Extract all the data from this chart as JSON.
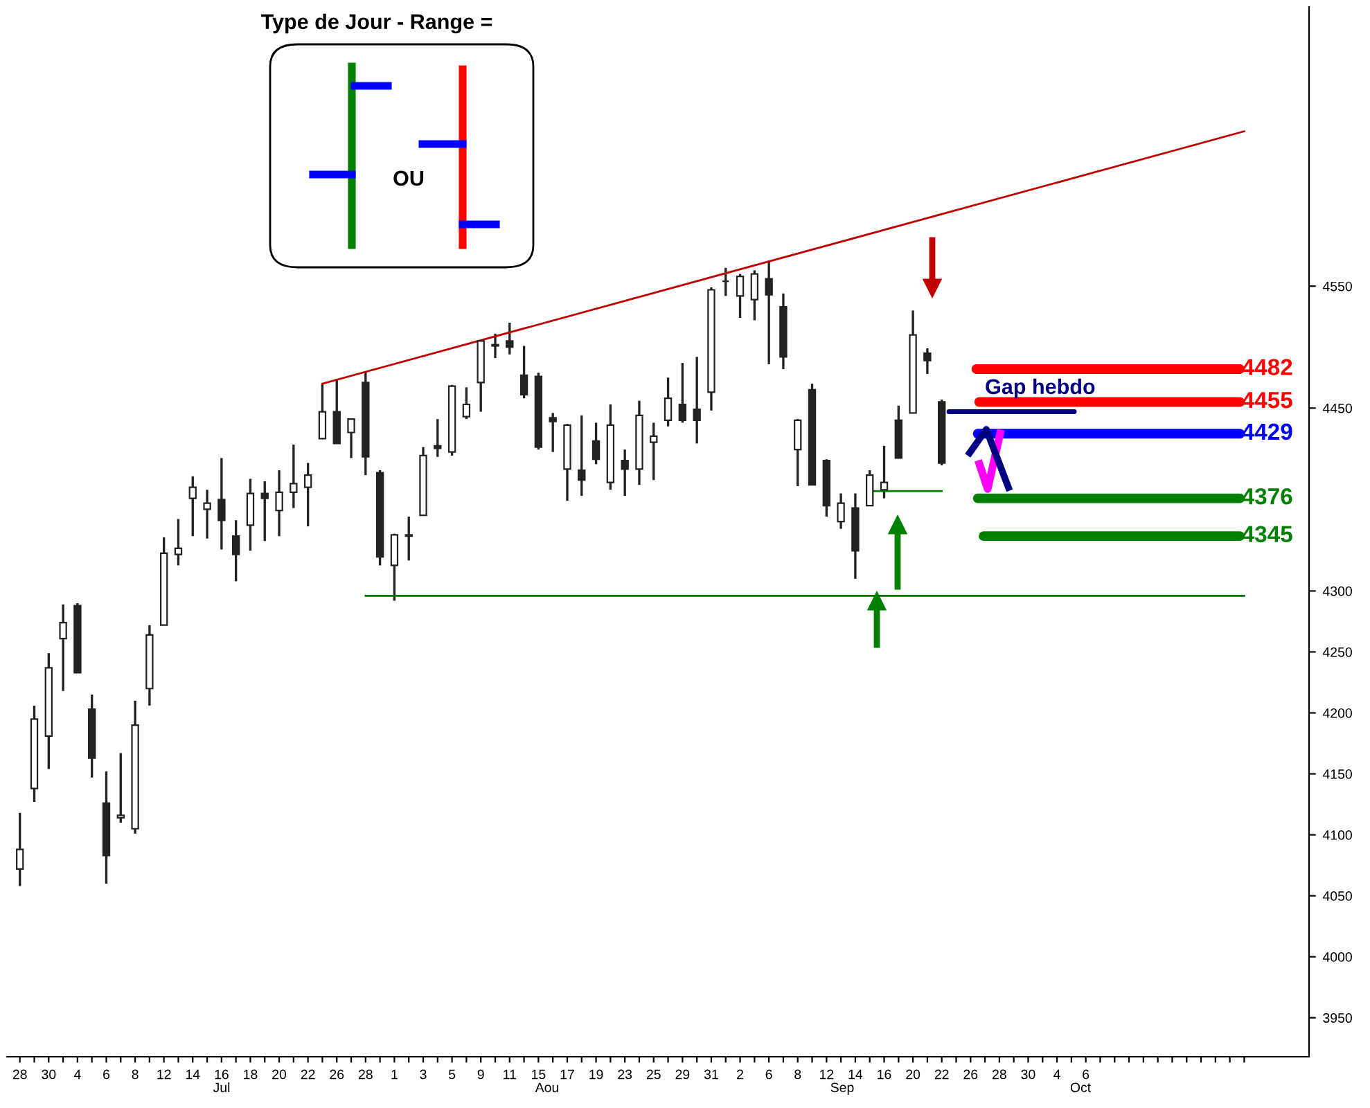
{
  "chart_data": {
    "type": "candlestick",
    "categories": [
      "28",
      null,
      "30",
      null,
      "4",
      null,
      "6",
      null,
      "8",
      null,
      "12",
      null,
      "14",
      null,
      "16",
      null,
      "18",
      null,
      "20",
      null,
      "22",
      null,
      "26",
      null,
      "28",
      null,
      "1",
      null,
      "3",
      null,
      "5",
      null,
      "9",
      null,
      "11",
      null,
      "15",
      null,
      "17",
      null,
      "19",
      null,
      "23",
      null,
      "25",
      null,
      "29",
      null,
      "31",
      null,
      "2",
      null,
      "6",
      null,
      "8",
      null,
      "12",
      null,
      "14",
      null,
      "16",
      null,
      "20",
      null,
      "22",
      null,
      "26",
      null,
      "28",
      null,
      "30",
      null,
      "4",
      null,
      "6",
      null,
      null,
      null,
      null,
      null,
      null,
      null,
      null,
      null,
      null,
      null
    ],
    "color": "#222222",
    "ohlc": [
      [
        4072,
        4118,
        4058,
        4088
      ],
      [
        4138,
        4206,
        4127,
        4195
      ],
      [
        4181,
        4249,
        4154,
        4237
      ],
      [
        4261,
        4289,
        4218,
        4274
      ],
      [
        4288,
        4290,
        4233,
        4233
      ],
      [
        4203,
        4215,
        4147,
        4163
      ],
      [
        4126,
        4152,
        4060,
        4083
      ],
      [
        4114,
        4167,
        4110,
        4116
      ],
      [
        4105,
        4210,
        4101,
        4190
      ],
      [
        4220,
        4272,
        4206,
        4264
      ],
      [
        4272,
        4344,
        4272,
        4331
      ],
      [
        4330,
        4359,
        4321,
        4335
      ],
      [
        4376,
        4394,
        4345,
        4385
      ],
      [
        4367,
        4383,
        4343,
        4372
      ],
      [
        4375,
        4409,
        4334,
        4358
      ],
      [
        4345,
        4358,
        4308,
        4330
      ],
      [
        4354,
        4392,
        4333,
        4380
      ],
      [
        4380,
        4390,
        4341,
        4376
      ],
      [
        4366,
        4399,
        4345,
        4381
      ],
      [
        4381,
        4420,
        4368,
        4388
      ],
      [
        4385,
        4405,
        4353,
        4395
      ],
      [
        4425,
        4470,
        4425,
        4447
      ],
      [
        4447,
        4474,
        4421,
        4421
      ],
      [
        4430,
        4441,
        4409,
        4441
      ],
      [
        4471,
        4480,
        4395,
        4410
      ],
      [
        4397,
        4399,
        4321,
        4328
      ],
      [
        4321,
        4347,
        4292,
        4346
      ],
      [
        4345,
        4361,
        4325,
        4346
      ],
      [
        4362,
        4418,
        4362,
        4411
      ],
      [
        4419,
        4441,
        4410,
        4417
      ],
      [
        4414,
        4469,
        4411,
        4468
      ],
      [
        4443,
        4467,
        4441,
        4453
      ],
      [
        4471,
        4505,
        4447,
        4505
      ],
      [
        4501,
        4511,
        4491,
        4502
      ],
      [
        4505,
        4520,
        4494,
        4500
      ],
      [
        4477,
        4501,
        4458,
        4461
      ],
      [
        4476,
        4479,
        4416,
        4418
      ],
      [
        4442,
        4446,
        4414,
        4439
      ],
      [
        4400,
        4437,
        4374,
        4436
      ],
      [
        4399,
        4444,
        4378,
        4391
      ],
      [
        4423,
        4438,
        4404,
        4408
      ],
      [
        4389,
        4453,
        4383,
        4436
      ],
      [
        4407,
        4416,
        4378,
        4400
      ],
      [
        4400,
        4456,
        4387,
        4444
      ],
      [
        4422,
        4438,
        4391,
        4427
      ],
      [
        4440,
        4475,
        4435,
        4458
      ],
      [
        4453,
        4487,
        4438,
        4440
      ],
      [
        4449,
        4492,
        4421,
        4440
      ],
      [
        4463,
        4549,
        4448,
        4547
      ],
      [
        4554,
        4565,
        4542,
        4554
      ],
      [
        4542,
        4560,
        4524,
        4558
      ],
      [
        4539,
        4563,
        4522,
        4560
      ],
      [
        4556,
        4571,
        4486,
        4543
      ],
      [
        4533,
        4544,
        4482,
        4492
      ],
      [
        4416,
        4441,
        4386,
        4440
      ],
      [
        4465,
        4470,
        4387,
        4387
      ],
      [
        4407,
        4408,
        4361,
        4370
      ],
      [
        4357,
        4380,
        4351,
        4372
      ],
      [
        4368,
        4380,
        4310,
        4333
      ],
      [
        4370,
        4399,
        4370,
        4395
      ],
      [
        4383,
        4419,
        4376,
        4389
      ],
      [
        4440,
        4452,
        4409,
        4409
      ],
      [
        4446,
        4530,
        4446,
        4510
      ],
      [
        4495,
        4499,
        4478,
        4489
      ],
      [
        4455,
        4457,
        4403,
        4405
      ],
      null,
      null,
      null,
      null,
      null,
      null,
      null,
      null,
      null,
      null,
      null,
      null,
      null,
      null,
      null,
      null,
      null,
      null,
      null,
      null,
      null
    ],
    "series": [
      {
        "type": "line",
        "color": "#c00000",
        "values": [
          null,
          null,
          null,
          null,
          null,
          null,
          null,
          null,
          null,
          null,
          null,
          null,
          null,
          null,
          null,
          null,
          null,
          null,
          null,
          null,
          null,
          4470,
          null,
          null,
          null,
          null,
          null,
          null,
          null,
          null,
          null,
          null,
          null,
          null,
          null,
          null,
          null,
          null,
          null,
          null,
          null,
          null,
          null,
          null,
          null,
          null,
          null,
          null,
          null,
          null,
          null,
          null,
          null,
          null,
          null,
          null,
          null,
          null,
          null,
          null,
          null,
          null,
          null,
          null,
          null,
          null,
          null,
          null,
          null,
          null,
          null,
          null,
          null,
          null,
          null,
          null,
          null,
          null,
          null,
          null,
          null,
          null,
          null,
          null,
          null,
          4677
        ]
      },
      {
        "type": "line",
        "color": "#007000",
        "values": [
          null,
          null,
          null,
          null,
          null,
          null,
          null,
          null,
          null,
          null,
          null,
          null,
          null,
          null,
          null,
          null,
          null,
          null,
          null,
          null,
          null,
          null,
          null,
          null,
          4296,
          null,
          null,
          null,
          null,
          null,
          null,
          null,
          null,
          null,
          null,
          null,
          null,
          null,
          null,
          null,
          null,
          null,
          null,
          null,
          null,
          null,
          null,
          null,
          null,
          null,
          null,
          null,
          null,
          null,
          null,
          null,
          null,
          null,
          null,
          null,
          null,
          null,
          null,
          null,
          null,
          null,
          null,
          null,
          null,
          null,
          null,
          null,
          null,
          null,
          null,
          null,
          null,
          null,
          null,
          null,
          null,
          null,
          null,
          null,
          null,
          4296
        ]
      },
      {
        "type": "line",
        "color": "#008000",
        "values": [
          null,
          null,
          null,
          null,
          null,
          null,
          null,
          null,
          null,
          null,
          null,
          null,
          null,
          null,
          null,
          null,
          null,
          null,
          null,
          null,
          null,
          null,
          null,
          null,
          null,
          null,
          null,
          null,
          null,
          null,
          null,
          null,
          null,
          null,
          null,
          null,
          null,
          null,
          null,
          null,
          null,
          null,
          null,
          null,
          null,
          null,
          null,
          null,
          null,
          null,
          null,
          null,
          null,
          null,
          null,
          null,
          null,
          null,
          null,
          4382,
          null,
          null,
          null,
          null,
          4382,
          null,
          null,
          null,
          null,
          null,
          null,
          null,
          null,
          null,
          null,
          null,
          null,
          null,
          null,
          null,
          null,
          null,
          null,
          null,
          null,
          null
        ]
      }
    ],
    "ylim": [
      3918,
      4779
    ],
    "yticks": [
      3950,
      4000,
      4050,
      4100,
      4150,
      4200,
      4250,
      4300,
      4450,
      4550
    ],
    "ref_lines": [
      {
        "axis": "y",
        "value": 4482,
        "label": "4482",
        "color": "#ff0000"
      },
      {
        "axis": "y",
        "value": 4455,
        "label": "4455",
        "color": "#ff0000"
      },
      {
        "axis": "y",
        "value": 4447,
        "label": "Gap hebdo",
        "color": "#000080"
      },
      {
        "axis": "y",
        "value": 4429,
        "label": "4429",
        "color": "#0000ff"
      },
      {
        "axis": "y",
        "value": 4376,
        "label": "4376",
        "color": "#008000"
      },
      {
        "axis": "y",
        "value": 4345,
        "label": "4345",
        "color": "#008000"
      }
    ],
    "annotations": [
      "Type de Jour - Range =",
      "OU",
      "Jul",
      "Aou",
      "Sep",
      "Oct"
    ]
  }
}
